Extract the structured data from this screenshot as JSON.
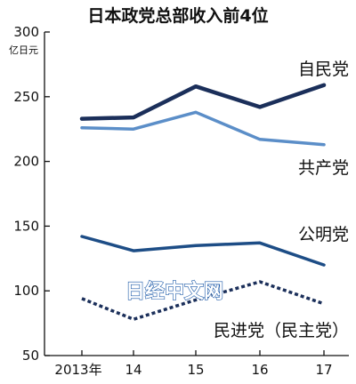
{
  "chart_data": {
    "type": "line",
    "title": "日本政党总部收入前4位",
    "unit_label": "亿日元",
    "categories": [
      "2013年",
      "14",
      "15",
      "16",
      "17"
    ],
    "ylim": [
      50,
      300
    ],
    "yticks": [
      "300",
      "250",
      "200",
      "150",
      "100",
      "50"
    ],
    "grid": false,
    "series": [
      {
        "name": "自民党",
        "values": [
          233,
          234,
          258,
          242,
          259
        ],
        "color": "#1b2f5a",
        "style": "solid",
        "width": 4.5
      },
      {
        "name": "共产党",
        "values": [
          226,
          225,
          238,
          217,
          213
        ],
        "color": "#5b8ec8",
        "style": "solid",
        "width": 3.5
      },
      {
        "name": "公明党",
        "values": [
          142,
          131,
          135,
          137,
          120
        ],
        "color": "#1d4d86",
        "style": "solid",
        "width": 3.5
      },
      {
        "name": "民进党（民主党）",
        "values": [
          94,
          78,
          93,
          107,
          90
        ],
        "color": "#1b2f5a",
        "style": "dotted",
        "width": 3.5
      }
    ]
  },
  "watermark": "日经中文网"
}
